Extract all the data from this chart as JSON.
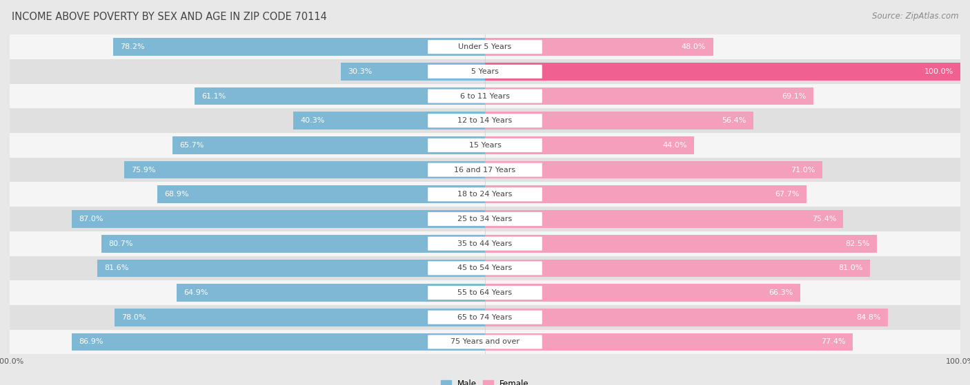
{
  "title": "INCOME ABOVE POVERTY BY SEX AND AGE IN ZIP CODE 70114",
  "source": "Source: ZipAtlas.com",
  "categories": [
    "Under 5 Years",
    "5 Years",
    "6 to 11 Years",
    "12 to 14 Years",
    "15 Years",
    "16 and 17 Years",
    "18 to 24 Years",
    "25 to 34 Years",
    "35 to 44 Years",
    "45 to 54 Years",
    "55 to 64 Years",
    "65 to 74 Years",
    "75 Years and over"
  ],
  "male_values": [
    78.2,
    30.3,
    61.1,
    40.3,
    65.7,
    75.9,
    68.9,
    87.0,
    80.7,
    81.6,
    64.9,
    78.0,
    86.9
  ],
  "female_values": [
    48.0,
    100.0,
    69.1,
    56.4,
    44.0,
    71.0,
    67.7,
    75.4,
    82.5,
    81.0,
    66.3,
    84.8,
    77.4
  ],
  "male_color": "#7eb8d4",
  "female_color": "#f4a0bc",
  "female_color_full": "#f06090",
  "male_label": "Male",
  "female_label": "Female",
  "bg_color": "#e8e8e8",
  "row_color_odd": "#f5f5f5",
  "row_color_even": "#e0e0e0",
  "title_fontsize": 10.5,
  "source_fontsize": 8.5,
  "label_fontsize": 8,
  "value_fontsize": 8,
  "tick_fontsize": 8
}
